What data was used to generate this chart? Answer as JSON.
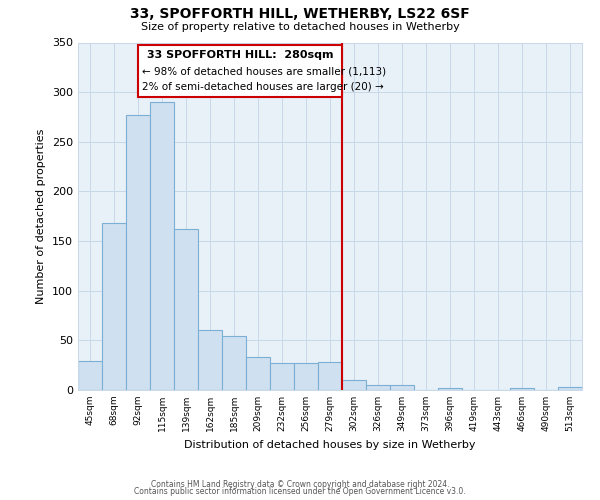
{
  "title": "33, SPOFFORTH HILL, WETHERBY, LS22 6SF",
  "subtitle": "Size of property relative to detached houses in Wetherby",
  "xlabel": "Distribution of detached houses by size in Wetherby",
  "ylabel": "Number of detached properties",
  "bar_labels": [
    "45sqm",
    "68sqm",
    "92sqm",
    "115sqm",
    "139sqm",
    "162sqm",
    "185sqm",
    "209sqm",
    "232sqm",
    "256sqm",
    "279sqm",
    "302sqm",
    "326sqm",
    "349sqm",
    "373sqm",
    "396sqm",
    "419sqm",
    "443sqm",
    "466sqm",
    "490sqm",
    "513sqm"
  ],
  "bar_values": [
    29,
    168,
    277,
    290,
    162,
    60,
    54,
    33,
    27,
    27,
    28,
    10,
    5,
    5,
    0,
    2,
    0,
    0,
    2,
    0,
    3
  ],
  "bar_color": "#cfe0f1",
  "bar_edge_color": "#7bafd4",
  "vline_color": "#cc0000",
  "ylim": [
    0,
    350
  ],
  "yticks": [
    0,
    50,
    100,
    150,
    200,
    250,
    300,
    350
  ],
  "annotation_title": "33 SPOFFORTH HILL:  280sqm",
  "annotation_line1": "← 98% of detached houses are smaller (1,113)",
  "annotation_line2": "2% of semi-detached houses are larger (20) →",
  "footer_line1": "Contains HM Land Registry data © Crown copyright and database right 2024.",
  "footer_line2": "Contains public sector information licensed under the Open Government Licence v3.0.",
  "background_color": "#ffffff",
  "grid_color": "#c8d8e8"
}
